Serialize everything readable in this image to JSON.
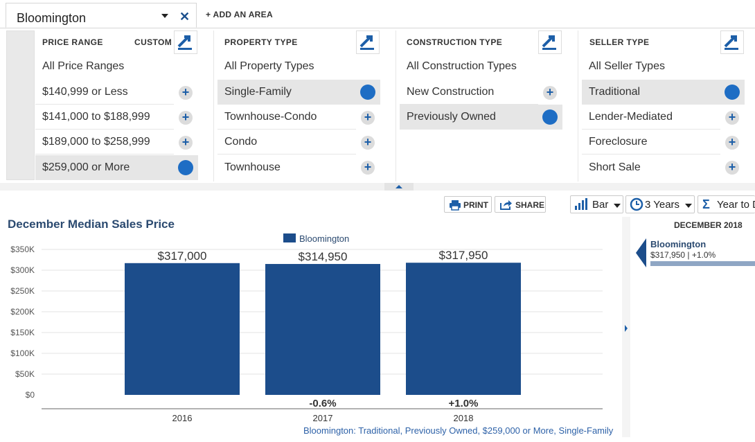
{
  "area": {
    "name": "Bloomington",
    "add_label": "+ ADD AN AREA"
  },
  "filters": {
    "price": {
      "header": "PRICE RANGE",
      "custom": "CUSTOM",
      "all": "All Price Ranges",
      "items": [
        {
          "label": "$140,999 or Less"
        },
        {
          "label": "$141,000 to $188,999"
        },
        {
          "label": "$189,000 to $258,999"
        },
        {
          "label": "$259,000 or More"
        }
      ],
      "selected_index": 3
    },
    "property": {
      "header": "PROPERTY TYPE",
      "all": "All Property Types",
      "items": [
        {
          "label": "Single-Family"
        },
        {
          "label": "Townhouse-Condo"
        },
        {
          "label": "Condo"
        },
        {
          "label": "Townhouse"
        }
      ],
      "selected_index": 0
    },
    "construction": {
      "header": "CONSTRUCTION TYPE",
      "all": "All Construction Types",
      "items": [
        {
          "label": "New Construction"
        },
        {
          "label": "Previously Owned"
        }
      ],
      "selected_index": 1
    },
    "seller": {
      "header": "SELLER TYPE",
      "all": "All Seller Types",
      "items": [
        {
          "label": "Traditional"
        },
        {
          "label": "Lender-Mediated"
        },
        {
          "label": "Foreclosure"
        },
        {
          "label": "Short Sale"
        }
      ],
      "selected_index": 0
    }
  },
  "toolbar": {
    "print": "PRINT",
    "share": "SHARE",
    "chart_type": "Bar",
    "range": "3 Years",
    "aggregate": "Year to D"
  },
  "chart_data": {
    "type": "bar",
    "title": "December Median Sales Price",
    "categories": [
      "2016",
      "2017",
      "2018"
    ],
    "series": [
      {
        "name": "Bloomington",
        "values": [
          317000,
          314950,
          317950
        ]
      }
    ],
    "value_labels": [
      "$317,000",
      "$314,950",
      "$317,950"
    ],
    "change_labels": [
      "",
      "-0.6%",
      "+1.0%"
    ],
    "ylim": [
      0,
      350000
    ],
    "yticks": [
      "$0",
      "$50K",
      "$100K",
      "$150K",
      "$200K",
      "$250K",
      "$300K",
      "$350K"
    ],
    "grid": true,
    "legend": "top-center",
    "bar_color": "#1c4d8b",
    "footnote": "Bloomington: Traditional, Previously Owned, $259,000 or More, Single-Family"
  },
  "side_panel": {
    "month": "DECEMBER 2018",
    "area": "Bloomington",
    "value": "$317,950 | +1.0%",
    "change_fraction": 0.01
  }
}
